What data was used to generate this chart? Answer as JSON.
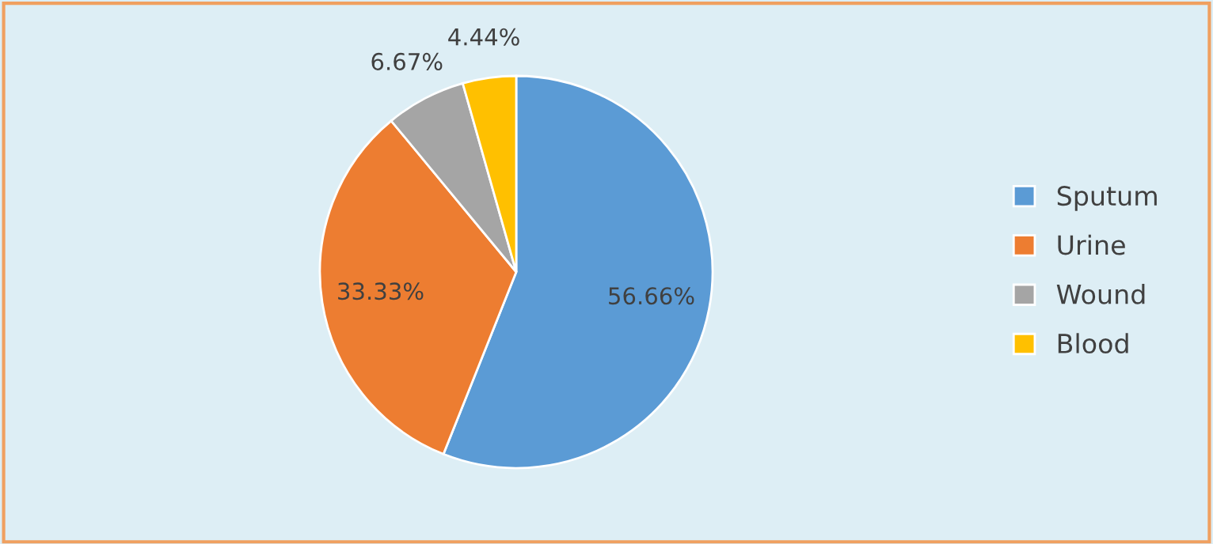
{
  "chart_data": {
    "type": "pie",
    "categories": [
      "Sputum",
      "Urine",
      "Wound",
      "Blood"
    ],
    "values": [
      56.66,
      33.33,
      6.67,
      4.44
    ],
    "colors": [
      "#5b9bd5",
      "#ed7d31",
      "#a5a5a5",
      "#ffc000"
    ],
    "value_labels": [
      "56.66%",
      "33.33%",
      "6.67%",
      "4.44%"
    ],
    "legend": "right"
  }
}
